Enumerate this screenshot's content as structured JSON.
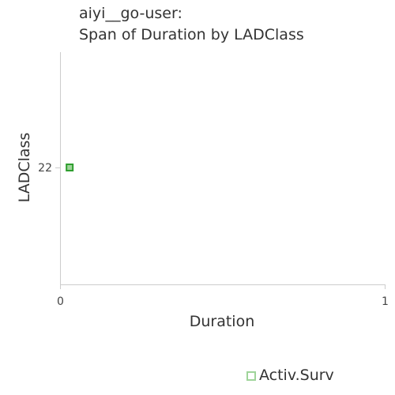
{
  "chart_data": {
    "type": "scatter",
    "title_lines": [
      "aiyi__go-user:",
      "Span of Duration by LADClass"
    ],
    "xlabel": "Duration",
    "ylabel": "LADClass",
    "xlim": [
      0,
      1
    ],
    "x_ticks": [
      "0",
      "1"
    ],
    "y_categories": [
      "22"
    ],
    "grid": false,
    "legend_position": "bottom-right",
    "series": [
      {
        "name": "Activ.Surv",
        "color": "#2e9e2e",
        "fill": "#9fd49a",
        "legend_color": "#9fd49a",
        "points": [
          {
            "x": 0.015,
            "y": "22"
          }
        ]
      }
    ]
  }
}
